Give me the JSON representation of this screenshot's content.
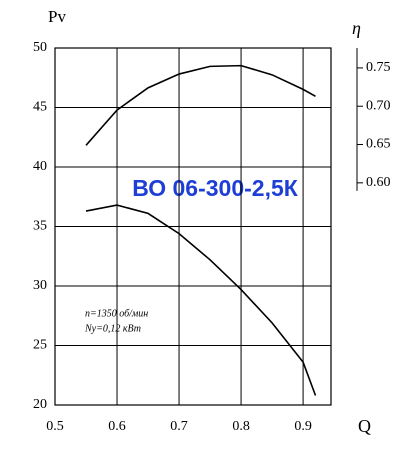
{
  "chart_data": {
    "type": "line",
    "title": "ВО 06-300-2,5К",
    "y_label": "Pv",
    "x_label": "Q",
    "y2_label": "η",
    "annotations": [
      "n=1350 об/мин",
      "Ny=0,12 кВт"
    ],
    "x": [
      0.55,
      0.6,
      0.65,
      0.7,
      0.75,
      0.8,
      0.85,
      0.9,
      0.92
    ],
    "series": [
      {
        "color": "#000000",
        "values": [
          36.3,
          36.8,
          36.1,
          34.4,
          32.2,
          29.7,
          26.9,
          23.6,
          20.8
        ]
      },
      {
        "color": "#000000",
        "axis": "y2",
        "values": [
          0.649,
          0.695,
          0.724,
          0.742,
          0.752,
          0.753,
          0.741,
          0.722,
          0.713
        ]
      }
    ],
    "xlim": [
      0.5,
      0.945
    ],
    "xticks": [
      0.5,
      0.6,
      0.7,
      0.8,
      0.9
    ],
    "ylim": [
      20,
      50
    ],
    "yticks": [
      20,
      25,
      30,
      35,
      40,
      45,
      50
    ],
    "y2lim": [
      0.31,
      0.776
    ],
    "y2ticks": [
      {
        "value": 0.6,
        "label": "0.60"
      },
      {
        "value": 0.65,
        "label": "0.65"
      },
      {
        "value": 0.7,
        "label": "0.70"
      },
      {
        "value": 0.75,
        "label": "0.75"
      }
    ],
    "grid": true
  }
}
